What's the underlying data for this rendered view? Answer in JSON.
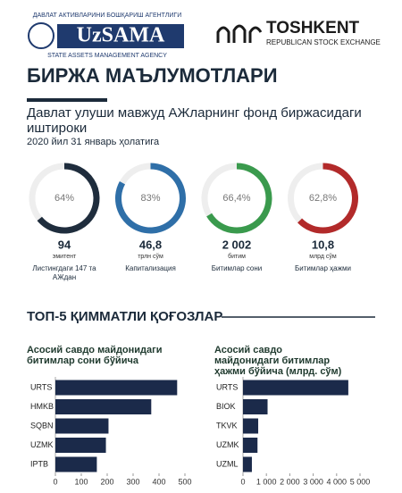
{
  "header": {
    "agency_top": "ДАВЛАТ АКТИВЛАРИНИ БОШҚАРИШ АГЕНТЛИГИ",
    "agency_name": "UzSAMA",
    "agency_bottom": "STATE ASSETS MANAGEMENT AGENCY",
    "exchange_name": "TOSHKENT",
    "exchange_sub": "REPUBLICAN STOCK EXCHANGE"
  },
  "title": "БИРЖА МАЪЛУМОТЛАРИ",
  "subtitle": "Давлат улуши мавжуд АЖларнинг фонд биржасидаги иштироки",
  "date": "2020 йил 31 январь ҳолатига",
  "section_title": "ТОП-5 ҚИММАТЛИ ҚОҒОЗЛАР",
  "chart_data": [
    {
      "type": "donut",
      "value": 64,
      "value_label": "64%",
      "color": "#1f2d3d",
      "figure": "94",
      "unit": "эмитент",
      "caption": "Листингдаги 147 та АЖдан"
    },
    {
      "type": "donut",
      "value": 83,
      "value_label": "83%",
      "color": "#2f6fa8",
      "figure": "46,8",
      "unit": "трлн сўм",
      "caption": "Капитализация"
    },
    {
      "type": "donut",
      "value": 66.4,
      "value_label": "66,4%",
      "color": "#3a9a4d",
      "figure": "2 002",
      "unit": "битим",
      "caption": "Битимлар сони"
    },
    {
      "type": "donut",
      "value": 62.8,
      "value_label": "62,8%",
      "color": "#b22a2a",
      "figure": "10,8",
      "unit": "млрд сўм",
      "caption": "Битимлар ҳажми"
    },
    {
      "type": "hbar",
      "title": "Асосий савдо майдонидаги битимлар сони бўйича",
      "categories": [
        "URTS",
        "HMKB",
        "SQBN",
        "UZMK",
        "IPTB"
      ],
      "values": [
        470,
        370,
        205,
        195,
        160
      ],
      "color": "#1b2a4a",
      "xlim": [
        0,
        500
      ],
      "xticks": [
        0,
        100,
        200,
        300,
        400,
        500
      ]
    },
    {
      "type": "hbar",
      "title": "Асосий савдо майдонидаги битимлар ҳажми бўйича (млрд. сўм)",
      "categories": [
        "URTS",
        "BIOK",
        "TKVK",
        "UZMK",
        "UZML"
      ],
      "values": [
        4500,
        1050,
        650,
        620,
        380
      ],
      "color": "#1b2a4a",
      "xlim": [
        0,
        5000
      ],
      "xticks": [
        0,
        {
          "value": 1000,
          "label": "1 000"
        },
        {
          "value": 2000,
          "label": "2 000"
        },
        {
          "value": 3000,
          "label": "3 000"
        },
        {
          "value": 4000,
          "label": "4 000"
        },
        {
          "value": 5000,
          "label": "5 000"
        }
      ]
    }
  ]
}
